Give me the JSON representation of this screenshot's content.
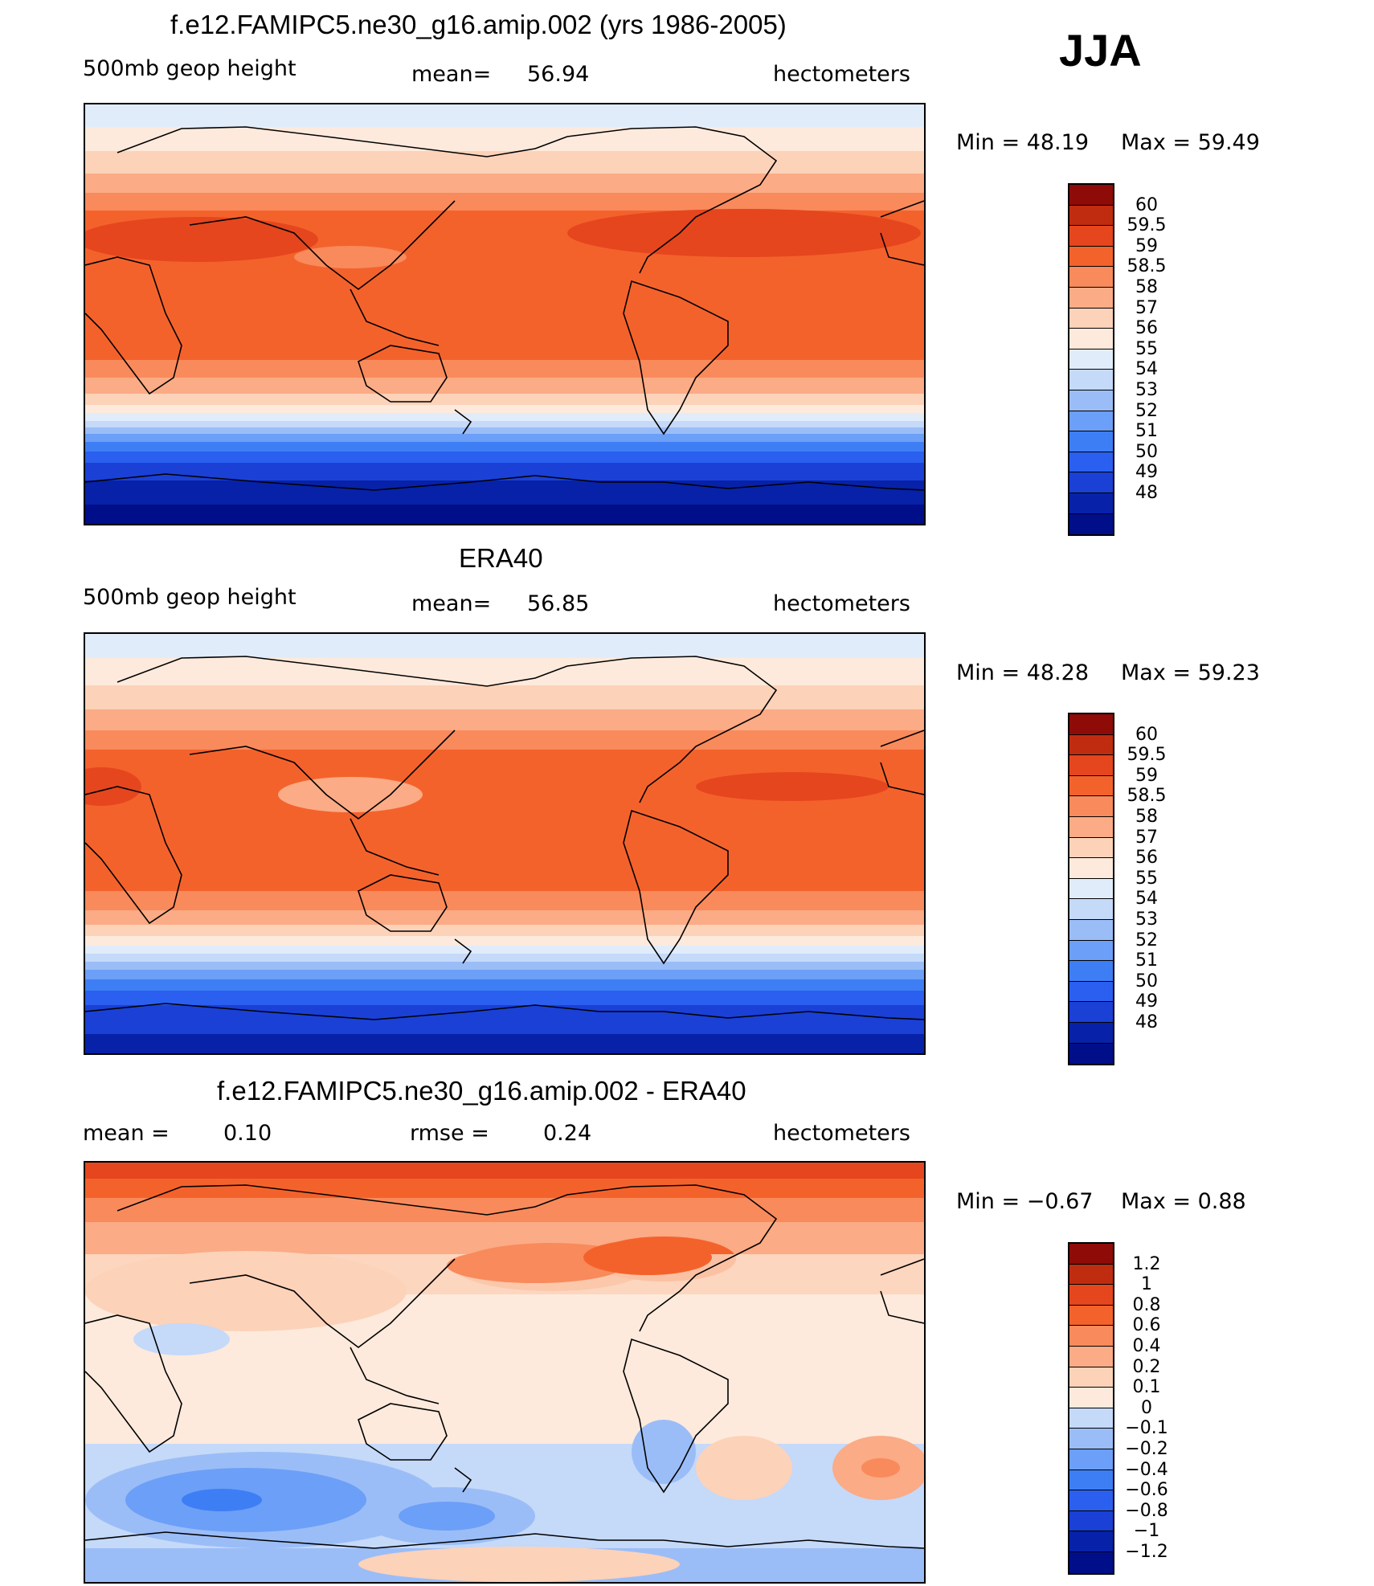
{
  "season_label": "JJA",
  "units": "hectometers",
  "palettes": {
    "abs": [
      "#000e8a",
      "#0722a8",
      "#1a40d6",
      "#2a5ff0",
      "#3e7ef5",
      "#6c9ff7",
      "#9bbdf7",
      "#c5d9f9",
      "#e1ecfb",
      "#fdeadc",
      "#fcd2b9",
      "#fbab85",
      "#f98a5c",
      "#f4622c",
      "#e5461e",
      "#c02c10",
      "#8e0b08"
    ],
    "diff": [
      "#000e8a",
      "#0722a8",
      "#1a40d6",
      "#2a5ff0",
      "#3e7ef5",
      "#6c9ff7",
      "#9bbdf7",
      "#c5d9f9",
      "#fdeadc",
      "#fcd2b9",
      "#fbab85",
      "#f98a5c",
      "#f4622c",
      "#e5461e",
      "#c02c10",
      "#8e0b08"
    ]
  },
  "panels": [
    {
      "title": "f.e12.FAMIPC5.ne30_g16.amip.002 (yrs 1986-2005)",
      "left_label": "500mb  geop  height",
      "stat_label": "mean=",
      "stat_value": "56.94",
      "units": "hectometers",
      "min_text": "Min  =    48.19",
      "max_text": "Max  =    59.49",
      "colorbar_labels": [
        "60",
        "59.5",
        "59",
        "58.5",
        "58",
        "57",
        "56",
        "55",
        "54",
        "53",
        "52",
        "51",
        "50",
        "49",
        "48"
      ]
    },
    {
      "title": "ERA40",
      "left_label": "500mb  geop  height",
      "stat_label": "mean=",
      "stat_value": "56.85",
      "units": "hectometers",
      "min_text": "Min  =    48.28",
      "max_text": "Max  =    59.23",
      "colorbar_labels": [
        "60",
        "59.5",
        "59",
        "58.5",
        "58",
        "57",
        "56",
        "55",
        "54",
        "53",
        "52",
        "51",
        "50",
        "49",
        "48"
      ]
    },
    {
      "title": "f.e12.FAMIPC5.ne30_g16.amip.002 - ERA40",
      "left_label": "mean  =",
      "left_value": "0.10",
      "stat_label": "rmse  =",
      "stat_value": "0.24",
      "units": "hectometers",
      "min_text": "Min  =   −0.67",
      "max_text": "Max  =      0.88",
      "colorbar_labels": [
        "1.2",
        "1",
        "0.8",
        "0.6",
        "0.4",
        "0.2",
        "0.1",
        "0",
        "−0.1",
        "−0.2",
        "−0.4",
        "−0.6",
        "−0.8",
        "−1",
        "−1.2"
      ]
    }
  ]
}
